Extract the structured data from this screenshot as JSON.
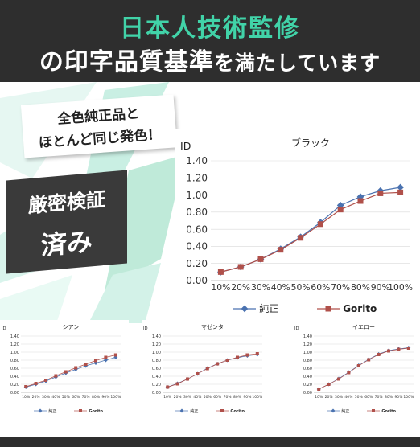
{
  "header": {
    "line1": "日本人技術監修",
    "line2_main": "の印字品質基準",
    "line2_tail": "を満たしています"
  },
  "badges": {
    "badge1_line1": "全色純正品と",
    "badge1_line2": "ほとんど同じ発色！",
    "badge2_line1": "厳密検証",
    "badge2_line2": "済み"
  },
  "colors": {
    "banner_bg": "#2e2e2e",
    "accent": "#41d3a8",
    "series_genuine": "#4a72b0",
    "series_gorito": "#b0504a"
  },
  "chart_data": [
    {
      "type": "line",
      "title": "ブラック",
      "ylabel": "ID",
      "ylim": [
        0,
        1.4
      ],
      "yticks": [
        "0.00",
        "0.20",
        "0.40",
        "0.60",
        "0.80",
        "1.00",
        "1.20",
        "1.40"
      ],
      "categories": [
        "10%",
        "20%",
        "30%",
        "40%",
        "50%",
        "60%",
        "70%",
        "80%",
        "90%",
        "100%"
      ],
      "series": [
        {
          "name": "純正",
          "values": [
            0.1,
            0.16,
            0.25,
            0.37,
            0.51,
            0.68,
            0.88,
            0.98,
            1.05,
            1.09
          ]
        },
        {
          "name": "Gorito",
          "values": [
            0.1,
            0.16,
            0.25,
            0.36,
            0.5,
            0.66,
            0.83,
            0.93,
            1.02,
            1.03
          ]
        }
      ],
      "legend": "bottom"
    },
    {
      "type": "line",
      "title": "シアン",
      "ylabel": "ID",
      "ylim": [
        0,
        1.4
      ],
      "yticks": [
        "0.00",
        "0.20",
        "0.40",
        "0.60",
        "0.80",
        "1.00",
        "1.20",
        "1.40"
      ],
      "categories": [
        "10%",
        "20%",
        "30%",
        "40%",
        "50%",
        "60%",
        "70%",
        "80%",
        "90%",
        "100%"
      ],
      "series": [
        {
          "name": "純正",
          "values": [
            0.13,
            0.2,
            0.28,
            0.38,
            0.48,
            0.57,
            0.66,
            0.73,
            0.8,
            0.87
          ]
        },
        {
          "name": "Gorito",
          "values": [
            0.14,
            0.22,
            0.3,
            0.41,
            0.51,
            0.61,
            0.7,
            0.79,
            0.87,
            0.93
          ]
        }
      ],
      "legend": "bottom"
    },
    {
      "type": "line",
      "title": "マゼンタ",
      "ylabel": "ID",
      "ylim": [
        0,
        1.4
      ],
      "yticks": [
        "0.00",
        "0.20",
        "0.40",
        "0.60",
        "0.80",
        "1.00",
        "1.20",
        "1.40"
      ],
      "categories": [
        "10%",
        "20%",
        "30%",
        "40%",
        "50%",
        "60%",
        "70%",
        "80%",
        "90%",
        "100%"
      ],
      "series": [
        {
          "name": "純正",
          "values": [
            0.13,
            0.22,
            0.33,
            0.46,
            0.6,
            0.71,
            0.8,
            0.86,
            0.91,
            0.94
          ]
        },
        {
          "name": "Gorito",
          "values": [
            0.13,
            0.21,
            0.33,
            0.46,
            0.59,
            0.71,
            0.8,
            0.87,
            0.93,
            0.96
          ]
        }
      ],
      "legend": "bottom"
    },
    {
      "type": "line",
      "title": "イエロー",
      "ylabel": "ID",
      "ylim": [
        0,
        1.4
      ],
      "yticks": [
        "0.00",
        "0.20",
        "0.40",
        "0.60",
        "0.80",
        "1.00",
        "1.20",
        "1.40"
      ],
      "categories": [
        "10%",
        "20%",
        "30%",
        "40%",
        "50%",
        "60%",
        "70%",
        "80%",
        "90%",
        "100%"
      ],
      "series": [
        {
          "name": "純正",
          "values": [
            0.08,
            0.2,
            0.34,
            0.5,
            0.67,
            0.82,
            0.95,
            1.04,
            1.08,
            1.11
          ]
        },
        {
          "name": "Gorito",
          "values": [
            0.08,
            0.2,
            0.33,
            0.49,
            0.66,
            0.81,
            0.94,
            1.03,
            1.07,
            1.1
          ]
        }
      ],
      "legend": "bottom"
    }
  ]
}
